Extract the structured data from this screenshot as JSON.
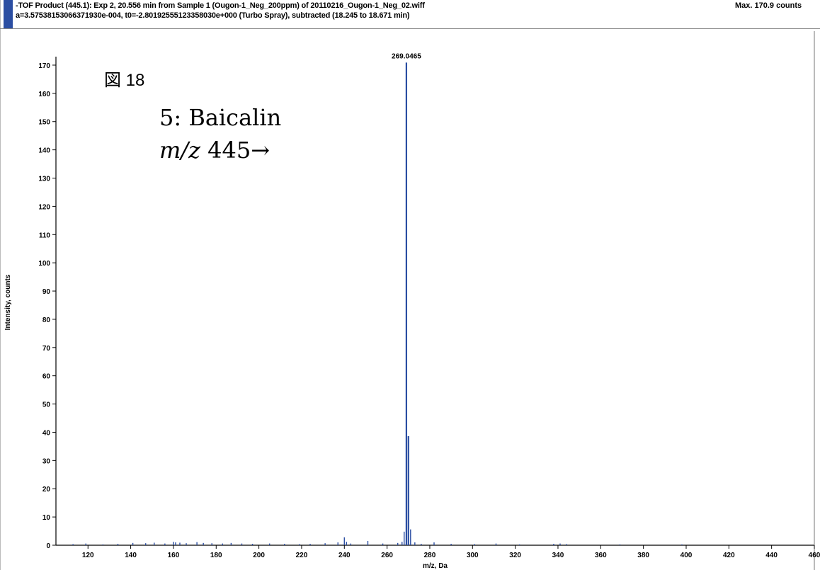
{
  "header": {
    "line1": "-TOF Product (445.1): Exp 2, 20.556 min from Sample 1 (Ougon-1_Neg_200ppm) of 20110216_Ougon-1_Neg_02.wiff",
    "line2": "a=3.57538153066371930e-004, t0=-2.80192555123358030e+000 (Turbo Spray), subtracted (18.245 to 18.671 min)",
    "max_counts": "Max. 170.9 counts"
  },
  "figure_label": "図 18",
  "compound": "5: Baicalin",
  "precursor": {
    "prefix": "m/z",
    "value": "445→"
  },
  "chart_data": {
    "type": "bar",
    "xlabel": "m/z, Da",
    "ylabel": "Intensity, counts",
    "xlim": [
      105,
      460
    ],
    "ylim": [
      0,
      172
    ],
    "xticks": [
      120,
      140,
      160,
      180,
      200,
      220,
      240,
      260,
      280,
      300,
      320,
      340,
      360,
      380,
      400,
      420,
      440,
      460
    ],
    "yticks": [
      0,
      10,
      20,
      30,
      40,
      50,
      60,
      70,
      80,
      90,
      100,
      110,
      120,
      130,
      140,
      150,
      160,
      170
    ],
    "peak_label": "269.0465",
    "series": [
      {
        "color": "#2b4ea2",
        "x": [
          113,
          119,
          127,
          134,
          141,
          147,
          151,
          156,
          160,
          161,
          163,
          166,
          171,
          174,
          178,
          183,
          187,
          192,
          197,
          205,
          212,
          219,
          224,
          231,
          237,
          240,
          241,
          243,
          251,
          258,
          265,
          267,
          268,
          269.0465,
          270,
          271,
          273,
          276,
          282,
          290,
          301,
          311,
          322,
          338,
          341,
          344,
          369,
          398
        ],
        "y": [
          0.4,
          0.6,
          0.3,
          0.5,
          0.8,
          0.7,
          0.9,
          0.6,
          1.2,
          1.0,
          0.9,
          0.7,
          1.1,
          0.8,
          0.7,
          0.6,
          0.8,
          0.6,
          0.5,
          0.6,
          0.5,
          0.4,
          0.5,
          0.7,
          1.0,
          2.8,
          1.2,
          0.6,
          1.5,
          0.6,
          0.8,
          1.2,
          4.8,
          170.9,
          38.6,
          5.6,
          1.0,
          0.5,
          1.0,
          0.5,
          0.4,
          0.6,
          0.3,
          0.5,
          0.6,
          0.4,
          0.3,
          0.3
        ]
      }
    ]
  }
}
